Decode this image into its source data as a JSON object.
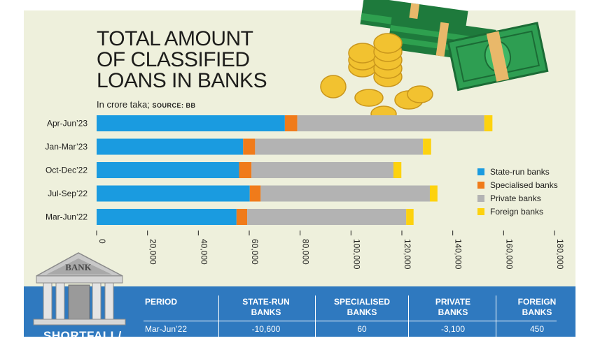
{
  "header": {
    "title_lines": [
      "TOTAL AMOUNT",
      "OF CLASSIFIED",
      "LOANS IN BANKS"
    ],
    "subtitle_main": "In crore taka;",
    "subtitle_source": "SOURCE: BB"
  },
  "colors": {
    "background": "#eef0dc",
    "state_run": "#1a9be0",
    "specialised": "#f07b1a",
    "private": "#b3b3b3",
    "foreign": "#fdd20e",
    "table_bg": "#2f79bf"
  },
  "chart_data": {
    "type": "bar",
    "orientation": "horizontal",
    "stacked": true,
    "categories": [
      "Apr-Jun’23",
      "Jan-Mar’23",
      "Oct-Dec’22",
      "Jul-Sep’22",
      "Mar-Jun’22"
    ],
    "series": [
      {
        "name": "State-run banks",
        "values": [
          74000,
          57600,
          56000,
          60200,
          55000
        ]
      },
      {
        "name": "Specialised banks",
        "values": [
          4900,
          4700,
          4900,
          4300,
          4200
        ]
      },
      {
        "name": "Private banks",
        "values": [
          73500,
          66000,
          55800,
          66500,
          62500
        ]
      },
      {
        "name": "Foreign banks",
        "values": [
          3200,
          3200,
          3100,
          3000,
          2900
        ]
      }
    ],
    "xlim": [
      0,
      180000
    ],
    "xticks": [
      "0",
      "20,000",
      "40,000",
      "60,000",
      "80,000",
      "100,000",
      "120,000",
      "140,000",
      "160,000",
      "180,000"
    ],
    "legend_position": "right"
  },
  "illustrations": {
    "money": "money-stacks-and-coins-icon",
    "bank": "bank-building-icon",
    "bank_sign": "BANK"
  },
  "table": {
    "headers": [
      [
        "PERIOD"
      ],
      [
        "STATE-RUN",
        "BANKS"
      ],
      [
        "SPECIALISED",
        "BANKS"
      ],
      [
        "PRIVATE",
        "BANKS"
      ],
      [
        "FOREIGN",
        "BANKS"
      ]
    ],
    "rows": [
      [
        "Mar-Jun’22",
        "-10,600",
        "60",
        "-3,100",
        "450"
      ]
    ],
    "side_label": "SHORTFALL/"
  }
}
